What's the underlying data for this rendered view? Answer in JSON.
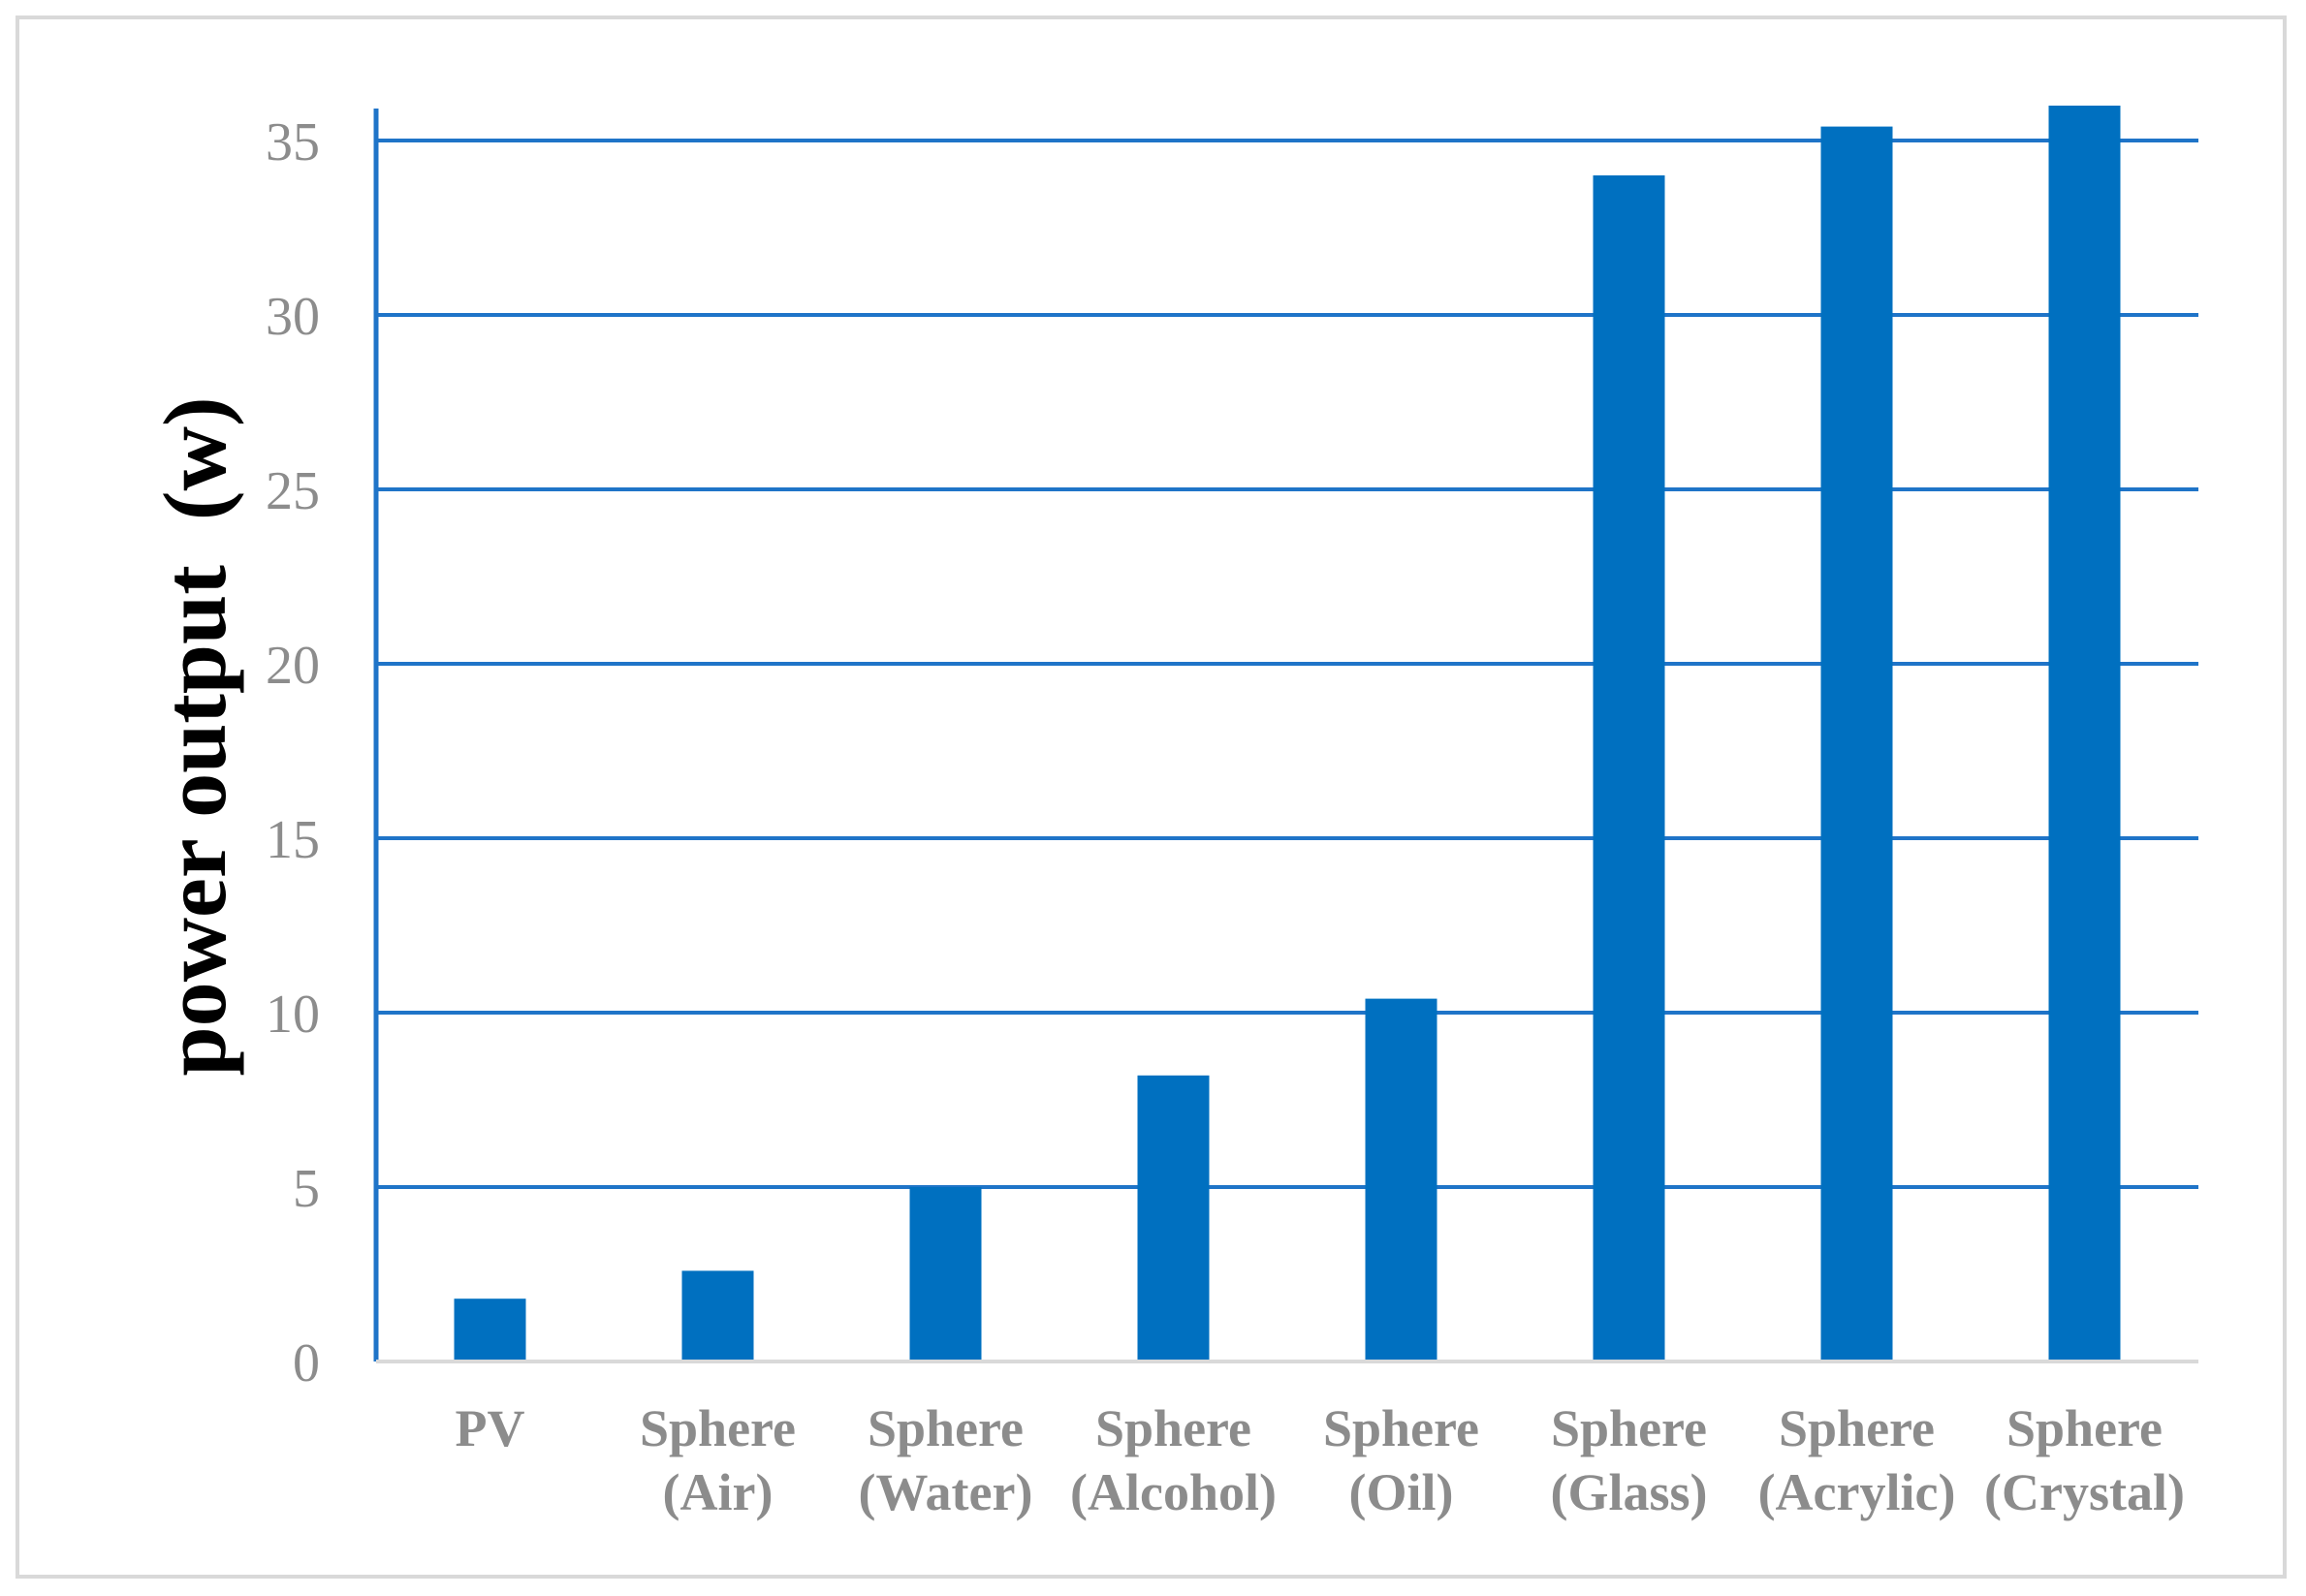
{
  "chart_data": {
    "type": "bar",
    "categories": [
      [
        "PV"
      ],
      [
        "Sphere",
        "(Air)"
      ],
      [
        "Sphere",
        "(Water)"
      ],
      [
        "Sphere",
        "(Alcohol)"
      ],
      [
        "Sphere",
        "(Oil)"
      ],
      [
        "Sphere",
        "(Glass)"
      ],
      [
        "Sphere",
        "(Acrylic)"
      ],
      [
        "Sphere",
        "(Crystal)"
      ]
    ],
    "values": [
      1.8,
      2.6,
      5.0,
      8.2,
      10.4,
      34.0,
      35.4,
      36.0
    ],
    "ylabel": "power output  (w)",
    "xlabel": "",
    "title": "",
    "ylim": [
      0,
      36
    ],
    "yticks": [
      0,
      5,
      10,
      15,
      20,
      25,
      30,
      35
    ],
    "grid": true,
    "colors": {
      "bar": "#0070c0",
      "gridline": "#1f74c8",
      "tick_text": "#8c8c8c",
      "frame": "#d9d9d9"
    }
  }
}
